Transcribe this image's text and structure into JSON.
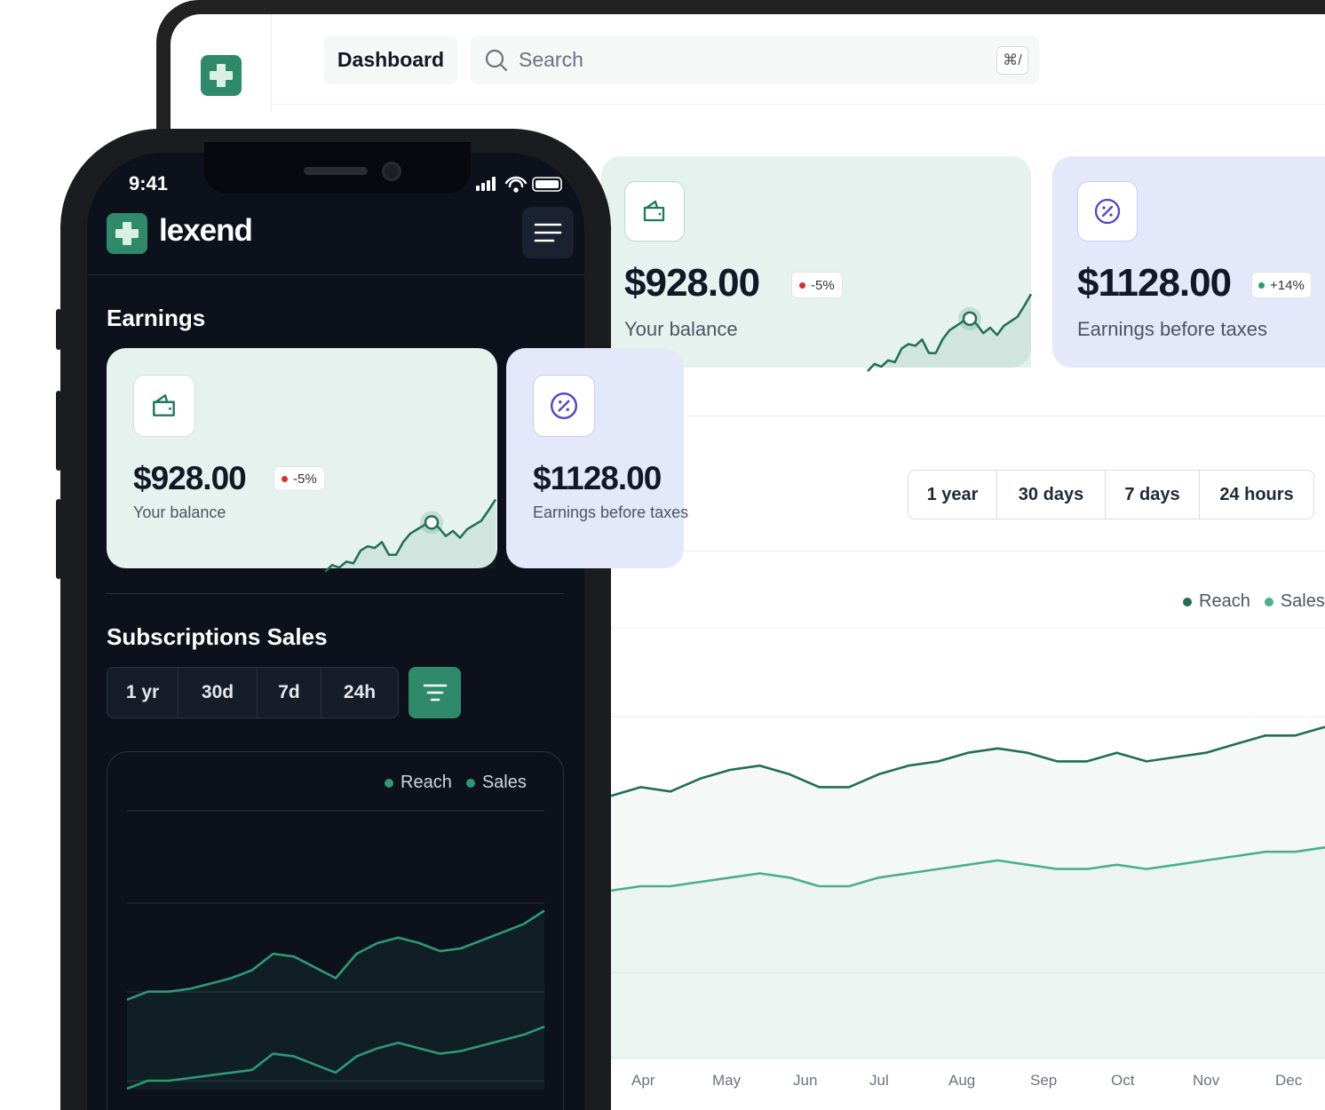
{
  "desktop": {
    "header": {
      "tab": "Dashboard",
      "search_placeholder": "Search",
      "shortcut": "⌘/"
    },
    "cards": [
      {
        "amount": "$928.00",
        "change": "-5%",
        "change_color": "#d93025",
        "label": "Your balance",
        "icon": "wallet-icon",
        "bg": "#e6f2ed"
      },
      {
        "amount": "$1128.00",
        "change": "+14%",
        "change_color": "#22a06b",
        "label": "Earnings before taxes",
        "icon": "percent-icon",
        "bg": "#e3e9fb"
      }
    ],
    "ranges": [
      "1 year",
      "30 days",
      "7 days",
      "24 hours"
    ],
    "legend": [
      {
        "label": "Reach",
        "color": "#1f6f54"
      },
      {
        "label": "Sales",
        "color": "#4cae8a"
      }
    ],
    "months": [
      "Apr",
      "May",
      "Jun",
      "Jul",
      "Aug",
      "Sep",
      "Oct",
      "Nov",
      "Dec"
    ]
  },
  "phone": {
    "time": "9:41",
    "brand": "lexend",
    "earnings_title": "Earnings",
    "cards": [
      {
        "amount": "$928.00",
        "change": "-5%",
        "label": "Your balance"
      },
      {
        "amount": "$1128.00",
        "label": "Earnings before taxes"
      }
    ],
    "subs_title": "Subscriptions Sales",
    "ranges": [
      "1 yr",
      "30d",
      "7d",
      "24h"
    ],
    "legend": [
      {
        "label": "Reach"
      },
      {
        "label": "Sales"
      }
    ]
  },
  "colors": {
    "brand": "#2f8a6b",
    "reach": "#1f6f54",
    "sales": "#4cae8a",
    "spark": "#1f6f54"
  },
  "chart_data": {
    "type": "line",
    "sparkline": [
      0,
      8,
      5,
      12,
      10,
      25,
      30,
      28,
      35,
      20,
      20,
      35,
      45,
      50,
      55,
      58,
      52,
      42,
      48,
      40,
      50,
      55,
      60,
      72,
      85
    ],
    "desktop_series": [
      {
        "name": "Reach",
        "values": [
          61,
          63,
          62,
          65,
          67,
          68,
          66,
          63,
          63,
          66,
          68,
          69,
          71,
          72,
          71,
          69,
          69,
          71,
          69,
          70,
          71,
          73,
          75,
          75,
          77
        ]
      },
      {
        "name": "Sales",
        "values": [
          39,
          40,
          40,
          41,
          42,
          43,
          42,
          40,
          40,
          42,
          43,
          44,
          45,
          46,
          45,
          44,
          44,
          45,
          44,
          45,
          46,
          47,
          48,
          48,
          49
        ]
      }
    ],
    "phone_series": [
      {
        "name": "Reach",
        "values": [
          30,
          33,
          33,
          34,
          36,
          38,
          41,
          47,
          46,
          42,
          38,
          47,
          51,
          53,
          51,
          48,
          49,
          52,
          55,
          58,
          63
        ]
      },
      {
        "name": "Sales",
        "values": [
          -3,
          0,
          0,
          1,
          2,
          3,
          4,
          10,
          9,
          6,
          3,
          9,
          12,
          14,
          12,
          10,
          11,
          13,
          15,
          17,
          20
        ]
      }
    ]
  }
}
